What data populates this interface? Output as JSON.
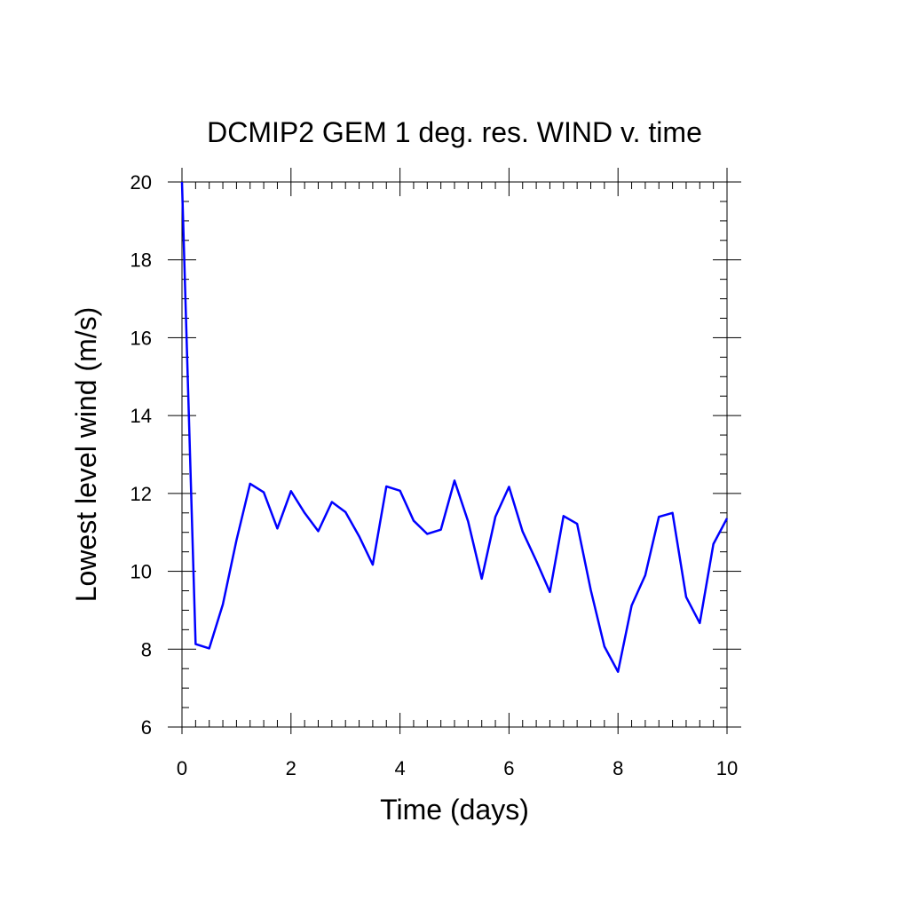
{
  "chart_data": {
    "type": "line",
    "title": "DCMIP2 GEM 1 deg. res. WIND v. time",
    "xlabel": "Time (days)",
    "ylabel": "Lowest level wind (m/s)",
    "xlim": [
      0,
      10
    ],
    "ylim": [
      6,
      20
    ],
    "x_ticks": [
      0,
      2,
      4,
      6,
      8,
      10
    ],
    "y_ticks": [
      6,
      8,
      10,
      12,
      14,
      16,
      18,
      20
    ],
    "x_minor_step": 0.25,
    "y_minor_step": 0.5,
    "grid": false,
    "line_color": "#0000ff",
    "series": [
      {
        "x": [
          0,
          0.25,
          0.5,
          0.75,
          1.0,
          1.25,
          1.5,
          1.75,
          2.0,
          2.25,
          2.5,
          2.75,
          3.0,
          3.25,
          3.5,
          3.75,
          4.0,
          4.25,
          4.5,
          4.75,
          5.0,
          5.25,
          5.5,
          5.75,
          6.0,
          6.25,
          6.5,
          6.75,
          7.0,
          7.25,
          7.5,
          7.75,
          8.0,
          8.25,
          8.5,
          8.75,
          9.0,
          9.25,
          9.5,
          9.75,
          10.0
        ],
        "values": [
          20.0,
          8.13,
          8.02,
          9.15,
          10.8,
          12.25,
          12.03,
          11.1,
          12.06,
          11.5,
          11.03,
          11.78,
          11.52,
          10.9,
          10.17,
          12.18,
          12.07,
          11.3,
          10.96,
          11.07,
          12.33,
          11.28,
          9.81,
          11.4,
          12.17,
          11.02,
          10.27,
          9.47,
          11.42,
          11.22,
          9.52,
          8.07,
          7.42,
          9.12,
          9.9,
          11.4,
          11.5,
          9.34,
          8.67,
          10.7,
          11.36
        ]
      }
    ]
  }
}
